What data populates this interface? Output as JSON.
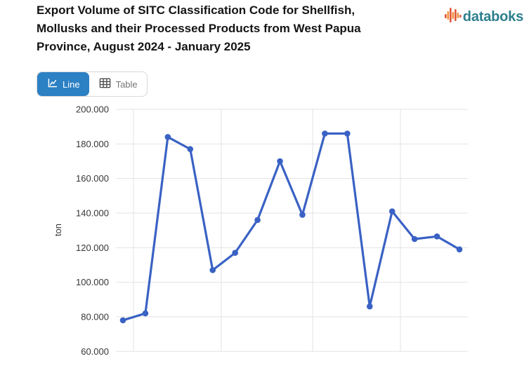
{
  "header": {
    "title_lines": [
      "Export Volume of SITC Classification Code for Shellfish,",
      "Mollusks and their Processed Products from West Papua",
      "Province, August 2024 - January 2025"
    ],
    "logo_text": "databoks"
  },
  "toolbar": {
    "line_label": "Line",
    "table_label": "Table"
  },
  "colors": {
    "line": "#3a62c4",
    "active_button": "#2c80c4",
    "logo_text": "#2c7f8d",
    "logo_orange": "#f09340",
    "logo_red": "#e2573a",
    "grid": "#e3e3e3",
    "tick_text": "#363636",
    "title_text": "#141414"
  },
  "chart_data": {
    "type": "line",
    "title": "Export Volume of SITC Classification Code for Shellfish, Mollusks and their Processed Products from West Papua Province, August 2024 - January 2025",
    "ylabel": "ton",
    "period": "August 2024 - January 2025",
    "n_points": 16,
    "values": [
      78000,
      82000,
      184000,
      177000,
      107000,
      117000,
      136000,
      170000,
      139000,
      186000,
      186000,
      86000,
      141000,
      125000,
      126500,
      119000
    ],
    "y_ticks": [
      "200.000",
      "180.000",
      "160.000",
      "140.000",
      "120.000",
      "100.000",
      "80.000",
      "60.000"
    ],
    "y_tick_values": [
      200000,
      180000,
      160000,
      140000,
      120000,
      100000,
      80000,
      60000
    ],
    "ylim": [
      60000,
      200000
    ],
    "grid": true,
    "legend": false,
    "x_axis_labels_cropped": true
  }
}
